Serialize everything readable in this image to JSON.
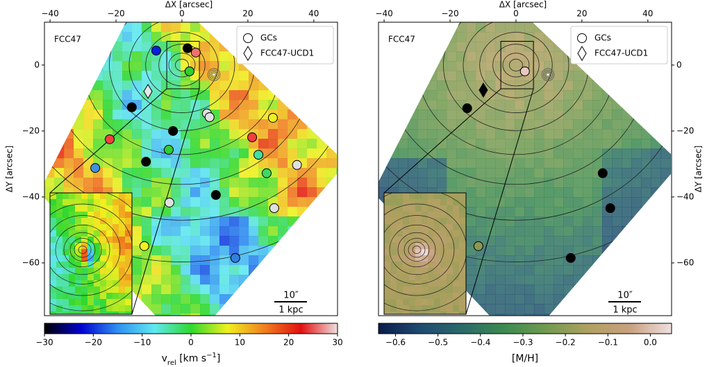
{
  "chart_data": [
    {
      "type": "scatter",
      "panel_label": "FCC47",
      "xlabel": "ΔX [arcsec]",
      "ylabel": "ΔY [arcsec]",
      "yaxis_side": "left",
      "xlim": [
        -41.7,
        47.2
      ],
      "ylim": [
        -76,
        13
      ],
      "xticks": [
        {
          "value": -40,
          "label": "−40"
        },
        {
          "value": -20,
          "label": "−20"
        },
        0,
        20,
        40
      ],
      "yticks": [
        {
          "value": -60,
          "label": "−60"
        },
        {
          "value": -40,
          "label": "−40"
        },
        {
          "value": -20,
          "label": "−20"
        },
        0
      ],
      "legend": "upper right",
      "series": [
        {
          "name": "GCs",
          "marker": "circle",
          "x": [
            -7.8,
            1.7,
            4.2,
            2.3,
            -15.2,
            7.6,
            8.4,
            27.6,
            -2.7,
            -21.9,
            21.3,
            -4.0,
            23.2,
            -10.9,
            34.9,
            -26.3,
            25.7,
            10.3,
            -3.8,
            28.0,
            -11.4,
            16.2
          ],
          "y": [
            4.4,
            5.1,
            3.8,
            -1.9,
            -12.8,
            -14.7,
            -15.8,
            -16.0,
            -20.0,
            -22.5,
            -21.9,
            -25.7,
            -27.2,
            -29.3,
            -30.3,
            -31.2,
            -32.8,
            -39.4,
            -41.7,
            -43.4,
            -54.9,
            -58.5
          ],
          "colors": [
            "#0a1fe0",
            "#000000",
            "#f07070",
            "#33cc33",
            "#000000",
            "#e0e0e0",
            "#e0e0e0",
            "#f0f020",
            "#000000",
            "#f04040",
            "#f04040",
            "#33cc33",
            "#40e0a0",
            "#000000",
            "#e0e0e0",
            "#4090e0",
            "#40d860",
            "#000000",
            "#e0e0e0",
            "#e0e0e0",
            "#f0f020",
            "#3080e0"
          ]
        },
        {
          "name": "FCC47-UCD1",
          "marker": "diamond",
          "x": [
            -10.3
          ],
          "y": [
            -8.0
          ],
          "colors": [
            "#e8e8e8"
          ]
        }
      ],
      "scale_bar": [
        "10″",
        "1 kpc"
      ],
      "colorbar": {
        "label": [
          "v",
          "rel",
          " [km s",
          "−1",
          "]"
        ],
        "lim": [
          -30,
          30
        ],
        "ticks": [
          {
            "value": -30,
            "label": "−30"
          },
          {
            "value": -20,
            "label": "−20"
          },
          {
            "value": -10,
            "label": "−10"
          },
          0,
          10,
          20,
          30
        ],
        "colormap": [
          "#000000",
          "#0000d0",
          "#3090f0",
          "#60e8f0",
          "#30d830",
          "#f0f020",
          "#f08020",
          "#e01010",
          "#f0e0e0"
        ]
      }
    },
    {
      "type": "scatter",
      "panel_label": "FCC47",
      "xlabel": "ΔX [arcsec]",
      "ylabel": "ΔY [arcsec]",
      "yaxis_side": "right",
      "xlim": [
        -41.7,
        47.2
      ],
      "ylim": [
        -76,
        13
      ],
      "xticks": [
        {
          "value": -40,
          "label": "−40"
        },
        {
          "value": -20,
          "label": "−20"
        },
        0,
        20,
        40
      ],
      "yticks": [
        {
          "value": -60,
          "label": "−60"
        },
        {
          "value": -40,
          "label": "−40"
        },
        {
          "value": -20,
          "label": "−20"
        },
        0
      ],
      "legend": "upper right",
      "series": [
        {
          "name": "GCs",
          "marker": "circle",
          "x": [
            2.7,
            -14.8,
            26.3,
            28.6,
            16.6,
            -11.4
          ],
          "y": [
            -1.9,
            -13.1,
            -32.8,
            -43.4,
            -58.5,
            -54.9
          ],
          "colors": [
            "#e8c8c0",
            "#000000",
            "#000000",
            "#000000",
            "#000000",
            "#8a9a50"
          ]
        },
        {
          "name": "FCC47-UCD1",
          "marker": "diamond",
          "x": [
            -9.9
          ],
          "y": [
            -7.6
          ],
          "colors": [
            "#000000"
          ]
        }
      ],
      "scale_bar": [
        "10″",
        "1 kpc"
      ],
      "colorbar": {
        "label": [
          "[M/H]"
        ],
        "lim": [
          -0.64,
          0.05
        ],
        "ticks": [
          {
            "value": -0.6,
            "label": "−0.6"
          },
          {
            "value": -0.5,
            "label": "−0.5"
          },
          {
            "value": -0.4,
            "label": "−0.4"
          },
          {
            "value": -0.3,
            "label": "−0.3"
          },
          {
            "value": -0.2,
            "label": "−0.2"
          },
          {
            "value": -0.1,
            "label": "−0.1"
          },
          {
            "value": 0,
            "label": "0.0"
          }
        ],
        "colormap": [
          "#0a1a4a",
          "#1f4a70",
          "#2a6a6a",
          "#3c8a50",
          "#709a50",
          "#b0a060",
          "#c8a080",
          "#f0e0e0"
        ]
      }
    }
  ]
}
